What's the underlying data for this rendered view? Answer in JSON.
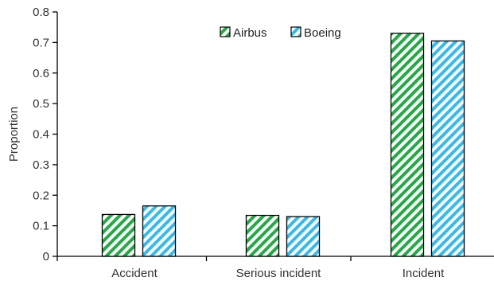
{
  "chart_data": {
    "type": "bar",
    "categories": [
      "Accident",
      "Serious incident",
      "Incident"
    ],
    "series": [
      {
        "name": "Airbus",
        "values": [
          0.137,
          0.134,
          0.73
        ],
        "color": "#22aa44"
      },
      {
        "name": "Boeing",
        "values": [
          0.165,
          0.13,
          0.705
        ],
        "color": "#33bbee"
      }
    ],
    "ylabel": "Proportion",
    "xlabel": "",
    "ylim": [
      0,
      0.8
    ],
    "yticks": [
      "0",
      "0.1",
      "0.2",
      "0.3",
      "0.4",
      "0.5",
      "0.6",
      "0.7",
      "0.8"
    ],
    "legend_position": "top-center",
    "grid": false,
    "bar_pattern": "diagonal-hatch"
  }
}
